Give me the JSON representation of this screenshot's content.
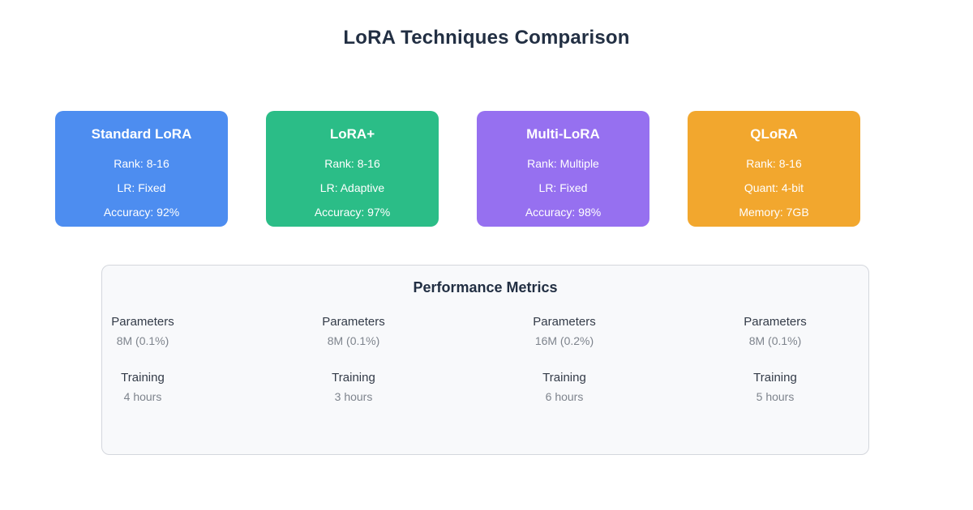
{
  "title": "LoRA Techniques Comparison",
  "cards": [
    {
      "title": "Standard LoRA",
      "color": "#4d8df0",
      "line1": "Rank: 8-16",
      "line2": "LR: Fixed",
      "line3": "Accuracy: 92%"
    },
    {
      "title": "LoRA+",
      "color": "#2bbd87",
      "line1": "Rank: 8-16",
      "line2": "LR: Adaptive",
      "line3": "Accuracy: 97%"
    },
    {
      "title": "Multi-LoRA",
      "color": "#9670f0",
      "line1": "Rank: Multiple",
      "line2": "LR: Fixed",
      "line3": "Accuracy: 98%"
    },
    {
      "title": "QLoRA",
      "color": "#f2a72e",
      "line1": "Rank: 8-16",
      "line2": "Quant: 4-bit",
      "line3": "Memory: 7GB"
    }
  ],
  "metrics": {
    "title": "Performance Metrics",
    "columns": [
      {
        "parameters_label": "Parameters",
        "parameters_value": "8M (0.1%)",
        "training_label": "Training",
        "training_value": "4 hours"
      },
      {
        "parameters_label": "Parameters",
        "parameters_value": "8M (0.1%)",
        "training_label": "Training",
        "training_value": "3 hours"
      },
      {
        "parameters_label": "Parameters",
        "parameters_value": "16M (0.2%)",
        "training_label": "Training",
        "training_value": "6 hours"
      },
      {
        "parameters_label": "Parameters",
        "parameters_value": "8M (0.1%)",
        "training_label": "Training",
        "training_value": "5 hours"
      }
    ]
  },
  "theme": {
    "title_text": "#222f43",
    "panel_background": "#f8f9fb",
    "panel_border": "#d4d7dd",
    "metric_label_text": "#333b48",
    "metric_value_text": "#7e848d",
    "card_text": "#ffffff"
  }
}
